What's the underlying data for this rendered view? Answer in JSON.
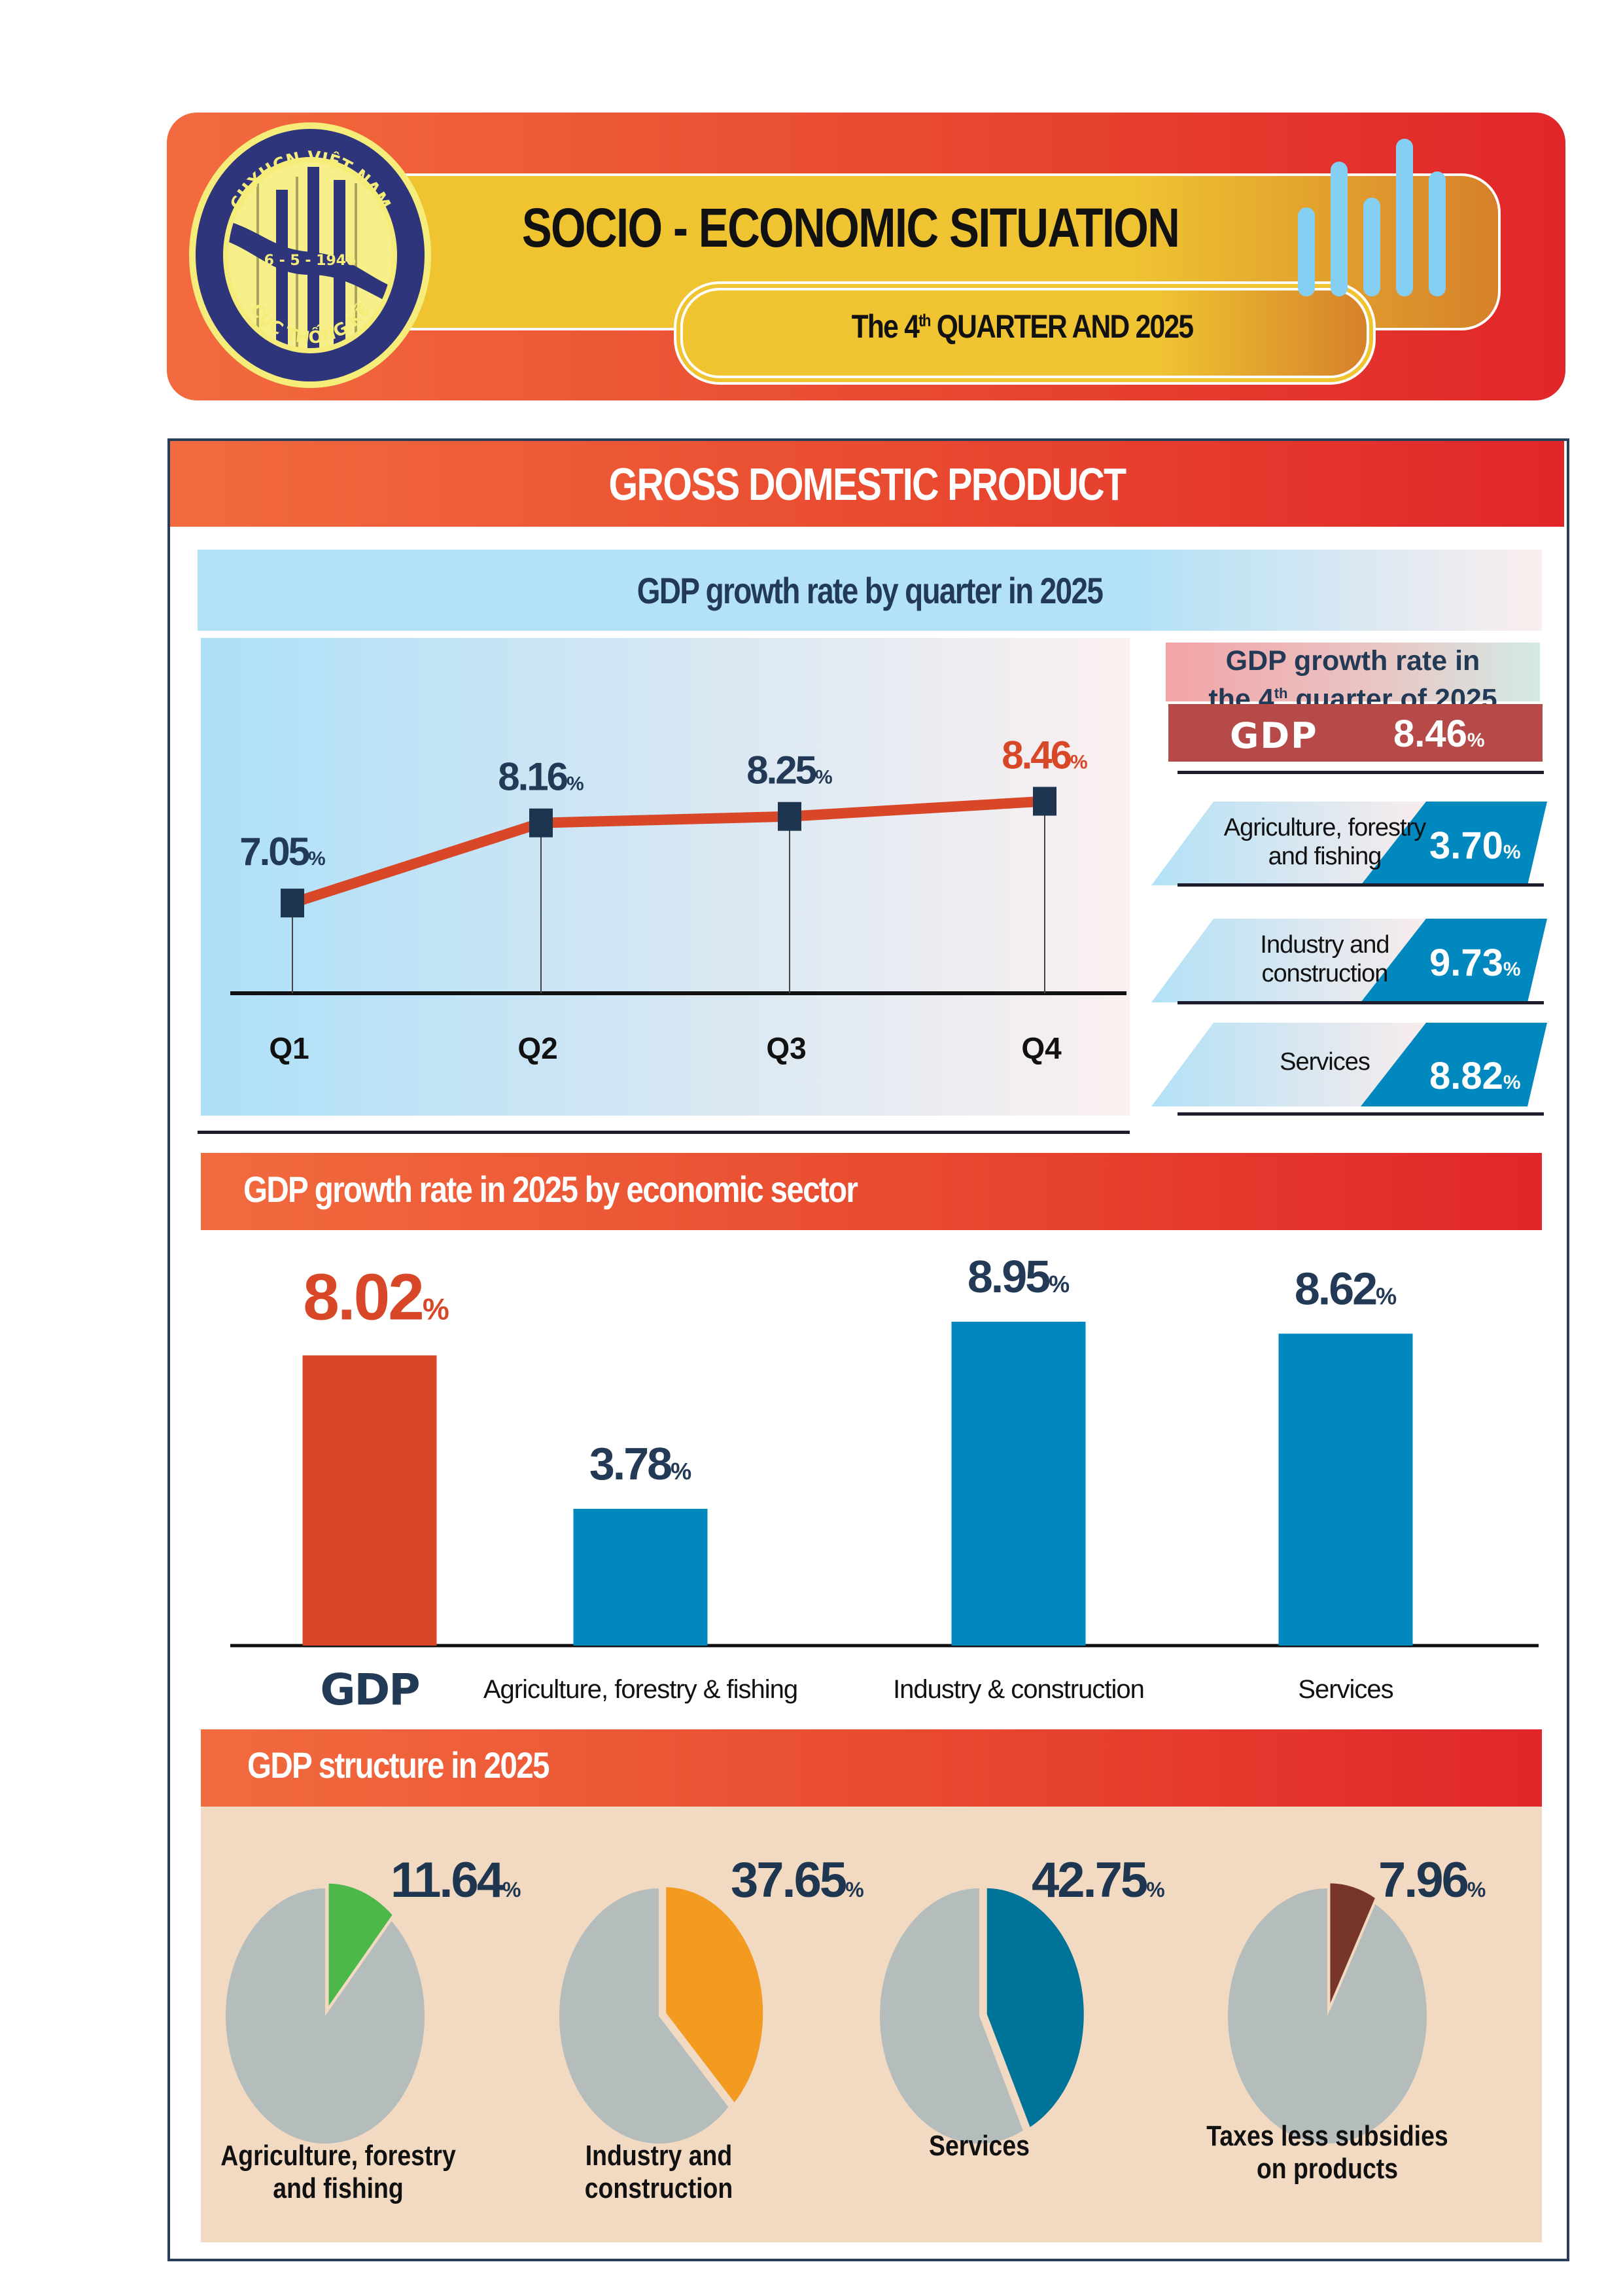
{
  "header": {
    "title": "SOCIO - ECONOMIC SITUATION",
    "subtitle_prefix": "The 4",
    "subtitle_sup": "th",
    "subtitle_suffix": " QUARTER AND 2025",
    "logo": {
      "top_text": "CHXHCN VIỆT NAM",
      "date_text": "6 - 5 - 1946",
      "bottom_text": "CỤC THỐNG KÊ"
    },
    "bars_icon": "bar-chart-icon"
  },
  "colors": {
    "banner_start": "#f26b3f",
    "banner_end": "#e1262a",
    "navy": "#233a56",
    "accent_red": "#d84727",
    "bar_blue": "#0088bf",
    "gdp_box": "#b54a49",
    "pie_grey": "#b5bdbc",
    "pie_bg": "#f1d9c2"
  },
  "section": {
    "title": "GROSS DOMESTIC PRODUCT"
  },
  "quarterly": {
    "title": "GDP growth rate by quarter in 2025",
    "pct_symbol": "%"
  },
  "q4_panel": {
    "title_line1": "GDP growth rate in",
    "title_line2_prefix": "the 4",
    "title_line2_sup": "th",
    "title_line2_suffix": " quarter of 2025",
    "gdp_label": "GDP",
    "gdp_value": "8.46",
    "pct_symbol": "%",
    "rows": [
      {
        "label_line1": "Agriculture, forestry",
        "label_line2": "and fishing",
        "value": "3.70"
      },
      {
        "label_line1": "Industry and",
        "label_line2": "construction",
        "value": "9.73"
      },
      {
        "label_line1": "Services",
        "label_line2": "",
        "value": "8.82"
      }
    ]
  },
  "sector": {
    "title": "GDP growth rate in 2025 by economic sector"
  },
  "structure": {
    "title": "GDP structure in 2025"
  },
  "chart_data": [
    {
      "type": "line",
      "title": "GDP growth rate by quarter in 2025",
      "categories": [
        "Q1",
        "Q2",
        "Q3",
        "Q4"
      ],
      "values": [
        7.05,
        8.16,
        8.25,
        8.46
      ],
      "labels": [
        "7.05",
        "8.16",
        "8.25",
        "8.46"
      ],
      "highlight_index": 3,
      "unit": "%",
      "xlabel": "",
      "ylabel": "",
      "ylim": [
        5.8,
        9.0
      ],
      "grid": false,
      "line_color": "#d84727",
      "marker_color": "#1e3550"
    },
    {
      "type": "bar",
      "title": "GDP growth rate in 2025 by economic sector",
      "categories": [
        "GDP",
        "Agriculture, forestry & fishing",
        "Industry & construction",
        "Services"
      ],
      "values": [
        8.02,
        3.78,
        8.95,
        8.62
      ],
      "labels": [
        "8.02",
        "3.78",
        "8.95",
        "8.62"
      ],
      "colors": [
        "#d84727",
        "#0088bf",
        "#0088bf",
        "#0088bf"
      ],
      "unit": "%",
      "xlabel": "",
      "ylabel": "",
      "ylim": [
        0,
        9.5
      ],
      "grid": false
    },
    {
      "type": "pie",
      "title": "GDP structure in 2025",
      "series": [
        {
          "name": "Agriculture, forestry and fishing",
          "label_line1": "Agriculture, forestry",
          "label_line2": "and fishing",
          "value": 11.64,
          "label": "11.64",
          "color": "#4cb84a"
        },
        {
          "name": "Industry and construction",
          "label_line1": "Industry and",
          "label_line2": "construction",
          "value": 37.65,
          "label": "37.65",
          "color": "#f39a20"
        },
        {
          "name": "Services",
          "label_line1": "Services",
          "label_line2": "",
          "value": 42.75,
          "label": "42.75",
          "color": "#007399"
        },
        {
          "name": "Taxes less subsidies on products",
          "label_line1": "Taxes less subsidies",
          "label_line2": "on products",
          "value": 7.96,
          "label": "7.96",
          "color": "#78352a"
        }
      ],
      "remainder_color": "#b5bdbc",
      "unit": "%"
    }
  ]
}
